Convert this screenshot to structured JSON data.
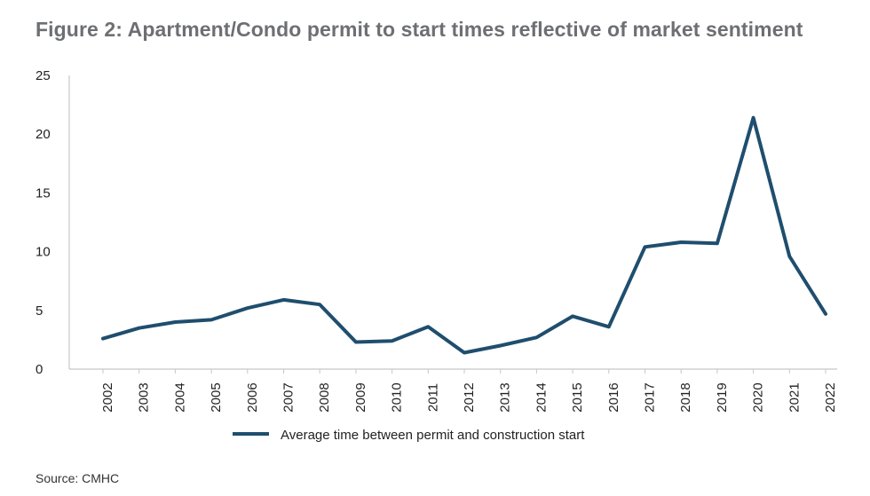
{
  "figure": {
    "title": "Figure 2: Apartment/Condo permit to start times reflective of market sentiment",
    "source": "Source: CMHC"
  },
  "colors": {
    "line": "#1f4e6e",
    "axis": "#c8c8c8"
  },
  "chart_data": {
    "type": "line",
    "title": "Figure 2: Apartment/Condo permit to start times reflective of market sentiment",
    "xlabel": "",
    "ylabel": "",
    "ylim": [
      0,
      25
    ],
    "yticks": [
      0,
      5,
      10,
      15,
      20,
      25
    ],
    "categories": [
      "2002",
      "2003",
      "2004",
      "2005",
      "2006",
      "2007",
      "2008",
      "2009",
      "2010",
      "2011",
      "2012",
      "2013",
      "2014",
      "2015",
      "2016",
      "2017",
      "2018",
      "2019",
      "2020",
      "2021",
      "2022"
    ],
    "series": [
      {
        "name": "Average time between permit and construction start",
        "values": [
          2.6,
          3.5,
          4.0,
          4.2,
          5.2,
          5.9,
          5.5,
          2.3,
          2.4,
          3.6,
          1.4,
          2.0,
          2.7,
          4.5,
          3.6,
          10.4,
          10.8,
          10.7,
          21.4,
          9.6,
          4.7
        ]
      }
    ],
    "legend": "bottom-center"
  }
}
